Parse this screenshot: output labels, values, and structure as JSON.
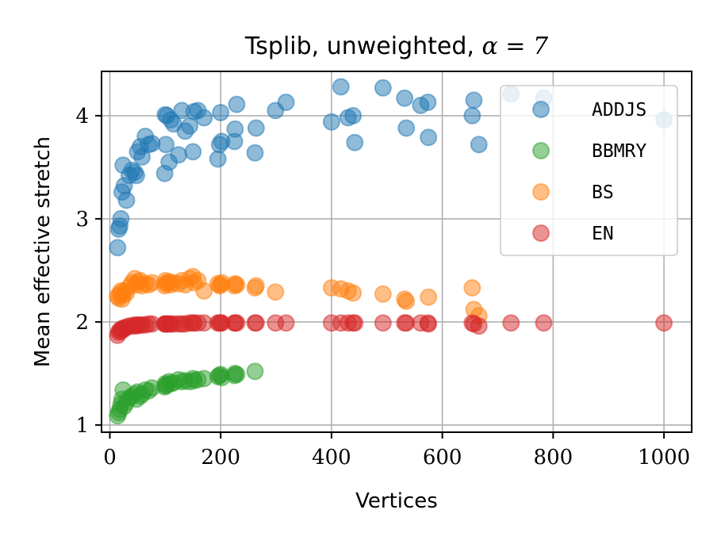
{
  "chart_data": {
    "type": "scatter",
    "title": {
      "prefix": "Tsplib, unweighted, ",
      "math": "α = 7"
    },
    "xlabel": "Vertices",
    "ylabel": "Mean effective stretch",
    "xlim": [
      -15,
      1050
    ],
    "ylim": [
      0.93,
      4.43
    ],
    "xticks": [
      0,
      200,
      400,
      600,
      800,
      1000
    ],
    "xtick_labels": [
      "0",
      "200",
      "400",
      "600",
      "800",
      "1000"
    ],
    "yticks": [
      1,
      2,
      3,
      4
    ],
    "ytick_labels": [
      "1",
      "2",
      "3",
      "4"
    ],
    "grid": true,
    "legend_position": "upper-right",
    "series": [
      {
        "name": "ADDJS",
        "color": "#1f77b4",
        "points": [
          [
            14,
            2.72
          ],
          [
            16,
            2.9
          ],
          [
            18,
            2.93
          ],
          [
            20,
            3.0
          ],
          [
            22,
            3.26
          ],
          [
            24,
            3.52
          ],
          [
            26,
            3.32
          ],
          [
            30,
            3.18
          ],
          [
            35,
            3.42
          ],
          [
            40,
            3.47
          ],
          [
            45,
            3.45
          ],
          [
            48,
            3.42
          ],
          [
            50,
            3.65
          ],
          [
            55,
            3.7
          ],
          [
            58,
            3.6
          ],
          [
            64,
            3.8
          ],
          [
            70,
            3.72
          ],
          [
            76,
            3.73
          ],
          [
            99,
            3.44
          ],
          [
            100,
            4.01
          ],
          [
            101,
            3.72
          ],
          [
            103,
            4.0
          ],
          [
            107,
            3.55
          ],
          [
            110,
            3.96
          ],
          [
            115,
            3.92
          ],
          [
            124,
            3.62
          ],
          [
            130,
            4.05
          ],
          [
            136,
            3.85
          ],
          [
            144,
            3.9
          ],
          [
            150,
            3.65
          ],
          [
            152,
            4.04
          ],
          [
            159,
            4.05
          ],
          [
            170,
            3.98
          ],
          [
            195,
            3.58
          ],
          [
            198,
            3.72
          ],
          [
            200,
            4.03
          ],
          [
            202,
            3.75
          ],
          [
            225,
            3.75
          ],
          [
            226,
            3.87
          ],
          [
            229,
            4.11
          ],
          [
            262,
            3.64
          ],
          [
            264,
            3.88
          ],
          [
            299,
            4.05
          ],
          [
            318,
            4.13
          ],
          [
            400,
            3.94
          ],
          [
            417,
            4.28
          ],
          [
            430,
            3.98
          ],
          [
            439,
            4.0
          ],
          [
            442,
            3.74
          ],
          [
            493,
            4.27
          ],
          [
            532,
            4.17
          ],
          [
            535,
            3.88
          ],
          [
            561,
            4.1
          ],
          [
            574,
            4.13
          ],
          [
            575,
            3.79
          ],
          [
            654,
            4.0
          ],
          [
            657,
            4.15
          ],
          [
            666,
            3.72
          ],
          [
            724,
            4.21
          ],
          [
            783,
            4.17
          ],
          [
            1000,
            3.96
          ]
        ]
      },
      {
        "name": "BBMRY",
        "color": "#2ca02c",
        "points": [
          [
            14,
            1.09
          ],
          [
            16,
            1.12
          ],
          [
            18,
            1.15
          ],
          [
            20,
            1.2
          ],
          [
            22,
            1.25
          ],
          [
            24,
            1.34
          ],
          [
            26,
            1.18
          ],
          [
            30,
            1.22
          ],
          [
            35,
            1.26
          ],
          [
            40,
            1.28
          ],
          [
            45,
            1.3
          ],
          [
            48,
            1.25
          ],
          [
            50,
            1.32
          ],
          [
            55,
            1.28
          ],
          [
            58,
            1.3
          ],
          [
            64,
            1.34
          ],
          [
            70,
            1.33
          ],
          [
            76,
            1.36
          ],
          [
            99,
            1.37
          ],
          [
            100,
            1.4
          ],
          [
            101,
            1.38
          ],
          [
            103,
            1.39
          ],
          [
            107,
            1.42
          ],
          [
            110,
            1.4
          ],
          [
            115,
            1.41
          ],
          [
            124,
            1.44
          ],
          [
            130,
            1.42
          ],
          [
            136,
            1.43
          ],
          [
            144,
            1.42
          ],
          [
            150,
            1.45
          ],
          [
            152,
            1.43
          ],
          [
            159,
            1.44
          ],
          [
            170,
            1.45
          ],
          [
            195,
            1.47
          ],
          [
            198,
            1.48
          ],
          [
            200,
            1.49
          ],
          [
            202,
            1.46
          ],
          [
            225,
            1.48
          ],
          [
            226,
            1.5
          ],
          [
            229,
            1.49
          ],
          [
            262,
            1.52
          ]
        ]
      },
      {
        "name": "BS",
        "color": "#ff7f0e",
        "points": [
          [
            14,
            2.25
          ],
          [
            16,
            2.23
          ],
          [
            18,
            2.27
          ],
          [
            20,
            2.3
          ],
          [
            22,
            2.22
          ],
          [
            24,
            2.26
          ],
          [
            26,
            2.3
          ],
          [
            30,
            2.28
          ],
          [
            35,
            2.34
          ],
          [
            40,
            2.38
          ],
          [
            45,
            2.42
          ],
          [
            48,
            2.36
          ],
          [
            50,
            2.39
          ],
          [
            55,
            2.4
          ],
          [
            58,
            2.35
          ],
          [
            64,
            2.37
          ],
          [
            70,
            2.36
          ],
          [
            76,
            2.38
          ],
          [
            99,
            2.35
          ],
          [
            100,
            2.4
          ],
          [
            101,
            2.37
          ],
          [
            103,
            2.38
          ],
          [
            107,
            2.39
          ],
          [
            110,
            2.36
          ],
          [
            115,
            2.38
          ],
          [
            124,
            2.37
          ],
          [
            130,
            2.4
          ],
          [
            136,
            2.36
          ],
          [
            144,
            2.42
          ],
          [
            150,
            2.44
          ],
          [
            152,
            2.38
          ],
          [
            159,
            2.4
          ],
          [
            170,
            2.3
          ],
          [
            195,
            2.37
          ],
          [
            198,
            2.35
          ],
          [
            200,
            2.36
          ],
          [
            202,
            2.38
          ],
          [
            225,
            2.35
          ],
          [
            226,
            2.37
          ],
          [
            229,
            2.36
          ],
          [
            262,
            2.33
          ],
          [
            264,
            2.35
          ],
          [
            299,
            2.29
          ],
          [
            400,
            2.33
          ],
          [
            417,
            2.32
          ],
          [
            430,
            2.3
          ],
          [
            439,
            2.28
          ],
          [
            493,
            2.27
          ],
          [
            532,
            2.22
          ],
          [
            535,
            2.2
          ],
          [
            575,
            2.24
          ],
          [
            654,
            2.33
          ],
          [
            657,
            2.12
          ],
          [
            666,
            2.06
          ]
        ]
      },
      {
        "name": "EN",
        "color": "#d62728",
        "points": [
          [
            14,
            1.87
          ],
          [
            16,
            1.9
          ],
          [
            18,
            1.92
          ],
          [
            20,
            1.91
          ],
          [
            22,
            1.93
          ],
          [
            24,
            1.94
          ],
          [
            26,
            1.93
          ],
          [
            30,
            1.95
          ],
          [
            35,
            1.96
          ],
          [
            40,
            1.96
          ],
          [
            45,
            1.97
          ],
          [
            48,
            1.96
          ],
          [
            50,
            1.97
          ],
          [
            55,
            1.97
          ],
          [
            58,
            1.97
          ],
          [
            64,
            1.97
          ],
          [
            70,
            1.98
          ],
          [
            76,
            1.98
          ],
          [
            99,
            1.98
          ],
          [
            100,
            1.98
          ],
          [
            101,
            1.98
          ],
          [
            103,
            1.98
          ],
          [
            107,
            1.98
          ],
          [
            110,
            1.98
          ],
          [
            115,
            1.98
          ],
          [
            124,
            1.98
          ],
          [
            130,
            1.98
          ],
          [
            136,
            1.98
          ],
          [
            144,
            1.99
          ],
          [
            150,
            1.99
          ],
          [
            152,
            1.99
          ],
          [
            159,
            1.99
          ],
          [
            170,
            1.99
          ],
          [
            195,
            1.99
          ],
          [
            198,
            1.99
          ],
          [
            200,
            1.99
          ],
          [
            202,
            1.99
          ],
          [
            225,
            1.99
          ],
          [
            226,
            1.99
          ],
          [
            229,
            1.99
          ],
          [
            262,
            1.99
          ],
          [
            264,
            1.99
          ],
          [
            299,
            1.99
          ],
          [
            318,
            1.99
          ],
          [
            400,
            1.99
          ],
          [
            417,
            1.99
          ],
          [
            430,
            1.99
          ],
          [
            439,
            1.99
          ],
          [
            442,
            1.99
          ],
          [
            493,
            1.99
          ],
          [
            532,
            1.99
          ],
          [
            535,
            1.99
          ],
          [
            561,
            1.99
          ],
          [
            574,
            1.99
          ],
          [
            575,
            1.98
          ],
          [
            654,
            1.99
          ],
          [
            657,
            1.98
          ],
          [
            666,
            1.96
          ],
          [
            724,
            1.99
          ],
          [
            783,
            1.99
          ],
          [
            1000,
            1.99
          ]
        ]
      }
    ]
  }
}
